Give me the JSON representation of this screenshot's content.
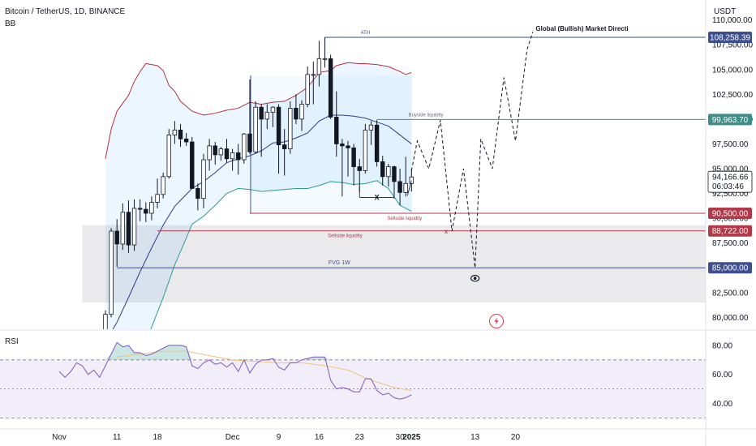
{
  "header": {
    "title": "Bitcoin / TetherUS, 1D, BINANCE",
    "indicator": "BB",
    "currency": "USDT"
  },
  "chart_data": {
    "type": "candlestick",
    "price_axis": {
      "ticks": [
        80000,
        82500,
        85000,
        87500,
        90000,
        92500,
        95000,
        97500,
        100000,
        102500,
        105000,
        107500,
        110000
      ],
      "tick_labels": [
        "80,000.00",
        "82,500.00",
        "85,000.00",
        "87,500.00",
        "90,000.00",
        "92,500.00",
        "95,000.00",
        "97,500.00",
        "100,000.00",
        "102,500.00",
        "105,000.00",
        "107,500.00",
        "110,000.00"
      ],
      "range": [
        78800,
        111200
      ]
    },
    "time_axis": {
      "labels": [
        {
          "day": 0,
          "label": "Nov"
        },
        {
          "day": 10,
          "label": "11"
        },
        {
          "day": 17,
          "label": "18"
        },
        {
          "day": 30,
          "label": "Dec"
        },
        {
          "day": 38,
          "label": "9"
        },
        {
          "day": 45,
          "label": "16"
        },
        {
          "day": 52,
          "label": "23"
        },
        {
          "day": 59,
          "label": "30"
        },
        {
          "day": 61,
          "label": "2025"
        },
        {
          "day": 72,
          "label": "13"
        },
        {
          "day": 79,
          "label": "20"
        }
      ]
    },
    "candles": [
      {
        "d": 8,
        "o": 76000,
        "h": 80700,
        "l": 75900,
        "c": 80300
      },
      {
        "d": 9,
        "o": 80300,
        "h": 89000,
        "l": 80000,
        "c": 88700
      },
      {
        "d": 10,
        "o": 88700,
        "h": 89900,
        "l": 85100,
        "c": 87400
      },
      {
        "d": 11,
        "o": 87400,
        "h": 91500,
        "l": 86800,
        "c": 90600
      },
      {
        "d": 12,
        "o": 90600,
        "h": 91800,
        "l": 86500,
        "c": 87300
      },
      {
        "d": 13,
        "o": 87300,
        "h": 91900,
        "l": 86700,
        "c": 91000
      },
      {
        "d": 14,
        "o": 91000,
        "h": 91900,
        "l": 89700,
        "c": 90900
      },
      {
        "d": 15,
        "o": 90900,
        "h": 91600,
        "l": 89600,
        "c": 90500
      },
      {
        "d": 16,
        "o": 90500,
        "h": 92200,
        "l": 89800,
        "c": 91600
      },
      {
        "d": 17,
        "o": 91600,
        "h": 94000,
        "l": 91000,
        "c": 92400
      },
      {
        "d": 18,
        "o": 92400,
        "h": 94600,
        "l": 92000,
        "c": 94200
      },
      {
        "d": 19,
        "o": 94200,
        "h": 99000,
        "l": 94000,
        "c": 98400
      },
      {
        "d": 20,
        "o": 98400,
        "h": 99800,
        "l": 97500,
        "c": 98900
      },
      {
        "d": 21,
        "o": 98900,
        "h": 99500,
        "l": 97200,
        "c": 98000
      },
      {
        "d": 22,
        "o": 98000,
        "h": 98600,
        "l": 97300,
        "c": 97700
      },
      {
        "d": 23,
        "o": 97700,
        "h": 98200,
        "l": 93200,
        "c": 93000
      },
      {
        "d": 24,
        "o": 93000,
        "h": 93500,
        "l": 90800,
        "c": 92000
      },
      {
        "d": 25,
        "o": 92000,
        "h": 96500,
        "l": 91000,
        "c": 95900
      },
      {
        "d": 26,
        "o": 95900,
        "h": 98000,
        "l": 94800,
        "c": 97300
      },
      {
        "d": 27,
        "o": 97300,
        "h": 97700,
        "l": 95400,
        "c": 96400
      },
      {
        "d": 28,
        "o": 96400,
        "h": 97200,
        "l": 95800,
        "c": 97000
      },
      {
        "d": 29,
        "o": 97000,
        "h": 98000,
        "l": 95600,
        "c": 96000
      },
      {
        "d": 30,
        "o": 96000,
        "h": 97000,
        "l": 94800,
        "c": 96600
      },
      {
        "d": 31,
        "o": 96600,
        "h": 97500,
        "l": 94400,
        "c": 95900
      },
      {
        "d": 32,
        "o": 95900,
        "h": 98600,
        "l": 95500,
        "c": 98500
      },
      {
        "d": 33,
        "o": 98500,
        "h": 104000,
        "l": 96500,
        "c": 96700
      },
      {
        "d": 34,
        "o": 96700,
        "h": 101800,
        "l": 96500,
        "c": 101200
      },
      {
        "d": 35,
        "o": 101200,
        "h": 101500,
        "l": 96200,
        "c": 100000
      },
      {
        "d": 36,
        "o": 100000,
        "h": 101500,
        "l": 99000,
        "c": 100700
      },
      {
        "d": 37,
        "o": 100700,
        "h": 101300,
        "l": 99200,
        "c": 101200
      },
      {
        "d": 38,
        "o": 101200,
        "h": 101500,
        "l": 94500,
        "c": 97400
      },
      {
        "d": 39,
        "o": 97400,
        "h": 99000,
        "l": 94300,
        "c": 97000
      },
      {
        "d": 40,
        "o": 97000,
        "h": 101800,
        "l": 96500,
        "c": 101100
      },
      {
        "d": 41,
        "o": 101100,
        "h": 102500,
        "l": 99500,
        "c": 100000
      },
      {
        "d": 42,
        "o": 100000,
        "h": 101900,
        "l": 98800,
        "c": 101500
      },
      {
        "d": 43,
        "o": 101500,
        "h": 105300,
        "l": 101200,
        "c": 104500
      },
      {
        "d": 44,
        "o": 104500,
        "h": 105800,
        "l": 101500,
        "c": 104500
      },
      {
        "d": 45,
        "o": 104500,
        "h": 107900,
        "l": 103300,
        "c": 106100
      },
      {
        "d": 46,
        "o": 106100,
        "h": 108258,
        "l": 105200,
        "c": 106100
      },
      {
        "d": 47,
        "o": 106100,
        "h": 106500,
        "l": 100000,
        "c": 100200
      },
      {
        "d": 48,
        "o": 100200,
        "h": 102800,
        "l": 96200,
        "c": 97500
      },
      {
        "d": 49,
        "o": 97500,
        "h": 98000,
        "l": 92200,
        "c": 97300
      },
      {
        "d": 50,
        "o": 97300,
        "h": 97800,
        "l": 94200,
        "c": 97100
      },
      {
        "d": 51,
        "o": 97100,
        "h": 97500,
        "l": 93300,
        "c": 95200
      },
      {
        "d": 52,
        "o": 95200,
        "h": 96000,
        "l": 92600,
        "c": 94800
      },
      {
        "d": 53,
        "o": 94800,
        "h": 99500,
        "l": 94500,
        "c": 98900
      },
      {
        "d": 54,
        "o": 98900,
        "h": 99800,
        "l": 97400,
        "c": 99400
      },
      {
        "d": 55,
        "o": 99400,
        "h": 99900,
        "l": 95200,
        "c": 95700
      },
      {
        "d": 56,
        "o": 95700,
        "h": 96300,
        "l": 93300,
        "c": 94200
      },
      {
        "d": 57,
        "o": 94200,
        "h": 95500,
        "l": 93200,
        "c": 95200
      },
      {
        "d": 58,
        "o": 95200,
        "h": 95300,
        "l": 92000,
        "c": 93700
      },
      {
        "d": 59,
        "o": 93700,
        "h": 95000,
        "l": 91300,
        "c": 92600
      },
      {
        "d": 60,
        "o": 92600,
        "h": 96200,
        "l": 92200,
        "c": 93500
      },
      {
        "d": 61,
        "o": 93500,
        "h": 95000,
        "l": 92700,
        "c": 94167
      }
    ],
    "bollinger": {
      "upper": [
        [
          8,
          96000
        ],
        [
          9,
          99000
        ],
        [
          10,
          100800
        ],
        [
          12,
          102400
        ],
        [
          13,
          103800
        ],
        [
          14,
          104800
        ],
        [
          15,
          105600
        ],
        [
          17,
          105400
        ],
        [
          18,
          104900
        ],
        [
          19,
          103400
        ],
        [
          20,
          102800
        ],
        [
          21,
          101800
        ],
        [
          22,
          101300
        ],
        [
          23,
          100800
        ],
        [
          25,
          100400
        ],
        [
          27,
          100600
        ],
        [
          29,
          100900
        ],
        [
          31,
          101100
        ],
        [
          33,
          101700
        ],
        [
          35,
          101500
        ],
        [
          37,
          101700
        ],
        [
          39,
          101800
        ],
        [
          41,
          102400
        ],
        [
          43,
          103200
        ],
        [
          45,
          104700
        ],
        [
          47,
          104900
        ],
        [
          48,
          105400
        ],
        [
          50,
          105700
        ],
        [
          52,
          105600
        ],
        [
          53,
          105600
        ],
        [
          55,
          105500
        ],
        [
          57,
          105300
        ],
        [
          59,
          104800
        ],
        [
          60,
          104500
        ],
        [
          61,
          104700
        ]
      ],
      "middle": [
        [
          8,
          77500
        ],
        [
          10,
          79500
        ],
        [
          12,
          82000
        ],
        [
          14,
          84600
        ],
        [
          16,
          87000
        ],
        [
          18,
          89300
        ],
        [
          20,
          91200
        ],
        [
          22,
          92400
        ],
        [
          23,
          93000
        ],
        [
          25,
          93700
        ],
        [
          27,
          94600
        ],
        [
          29,
          95600
        ],
        [
          31,
          96000
        ],
        [
          33,
          96300
        ],
        [
          35,
          96800
        ],
        [
          37,
          97600
        ],
        [
          39,
          97700
        ],
        [
          41,
          98100
        ],
        [
          43,
          98600
        ],
        [
          45,
          99800
        ],
        [
          47,
          100400
        ],
        [
          49,
          100400
        ],
        [
          51,
          100300
        ],
        [
          53,
          100100
        ],
        [
          55,
          99700
        ],
        [
          57,
          99300
        ],
        [
          59,
          98400
        ],
        [
          61,
          97500
        ]
      ],
      "lower": [
        [
          8,
          68000
        ],
        [
          10,
          71000
        ],
        [
          12,
          74000
        ],
        [
          14,
          76500
        ],
        [
          16,
          79000
        ],
        [
          18,
          82000
        ],
        [
          20,
          85300
        ],
        [
          22,
          88000
        ],
        [
          23,
          89400
        ],
        [
          25,
          90200
        ],
        [
          27,
          91300
        ],
        [
          29,
          92500
        ],
        [
          31,
          93000
        ],
        [
          33,
          92900
        ],
        [
          35,
          92700
        ],
        [
          37,
          92800
        ],
        [
          39,
          92900
        ],
        [
          41,
          93000
        ],
        [
          43,
          93000
        ],
        [
          45,
          93300
        ],
        [
          47,
          93700
        ],
        [
          49,
          93600
        ],
        [
          51,
          93400
        ],
        [
          53,
          93500
        ],
        [
          55,
          93800
        ],
        [
          57,
          93000
        ],
        [
          59,
          91300
        ],
        [
          61,
          90700
        ]
      ]
    },
    "levels": [
      {
        "name": "ATH",
        "value": 108258.39,
        "label": "108,258.39",
        "color": "#3d4e91",
        "note": "ATH",
        "note2": "Global (Bullish) Market Directi",
        "start": 46
      },
      {
        "name": "Buyside liquidity",
        "value": 99963.7,
        "label": "99,963.70",
        "color": "#3c8f89",
        "note": "Buyside liquidity",
        "start": 55
      },
      {
        "name": "Sellside liquidity 1",
        "value": 90500,
        "label": "90,500.00",
        "color": "#b23a48",
        "note": "Sellside liquidity",
        "start": 33
      },
      {
        "name": "Sellside liquidity 2",
        "value": 88722,
        "label": "88,722.00",
        "color": "#b23a48",
        "note": "Sellside liquidity",
        "start": 17
      },
      {
        "name": "FVG 1W",
        "value": 85000,
        "label": "85,000.00",
        "color": "#3d4e91",
        "note": "FVG 1W",
        "start": 10
      }
    ],
    "current_price": {
      "label": "94,166.66",
      "countdown": "06:03:46"
    },
    "fvg_zone": {
      "from": 81500,
      "to": 89300,
      "start_day": 4
    },
    "projection_path": [
      [
        61,
        94800
      ],
      [
        62,
        97800
      ],
      [
        64,
        95000
      ],
      [
        66,
        99900
      ],
      [
        68,
        88700
      ],
      [
        70,
        95000
      ],
      [
        72,
        85000
      ],
      [
        73,
        98000
      ],
      [
        75,
        95000
      ],
      [
        77,
        104200
      ],
      [
        79,
        97800
      ],
      [
        81,
        107000
      ],
      [
        82,
        108800
      ]
    ],
    "annotations": [
      {
        "text": "X",
        "day": 55,
        "value": 92100
      },
      {
        "text": "X",
        "day": 67,
        "value": 88700
      }
    ],
    "rsi": {
      "label": "RSI",
      "ticks": [
        40,
        60,
        80
      ],
      "tick_labels": [
        "40.00",
        "60.00",
        "80.00"
      ],
      "band": [
        30,
        70
      ],
      "midline": 50,
      "range": [
        23,
        90
      ],
      "values": [
        [
          0,
          62
        ],
        [
          1,
          58
        ],
        [
          2,
          62
        ],
        [
          3,
          68
        ],
        [
          4,
          66
        ],
        [
          5,
          60
        ],
        [
          6,
          63
        ],
        [
          7,
          58
        ],
        [
          8,
          66
        ],
        [
          9,
          74
        ],
        [
          10,
          82
        ],
        [
          11,
          79
        ],
        [
          12,
          80
        ],
        [
          13,
          75
        ],
        [
          14,
          75
        ],
        [
          15,
          73
        ],
        [
          16,
          74
        ],
        [
          17,
          76
        ],
        [
          18,
          78
        ],
        [
          19,
          80
        ],
        [
          20,
          80
        ],
        [
          21,
          80
        ],
        [
          22,
          79
        ],
        [
          23,
          66
        ],
        [
          24,
          64
        ],
        [
          25,
          68
        ],
        [
          26,
          70
        ],
        [
          27,
          67
        ],
        [
          28,
          68
        ],
        [
          29,
          65
        ],
        [
          30,
          68
        ],
        [
          31,
          62
        ],
        [
          32,
          70
        ],
        [
          33,
          61
        ],
        [
          34,
          67
        ],
        [
          35,
          70
        ],
        [
          36,
          70
        ],
        [
          37,
          71
        ],
        [
          38,
          65
        ],
        [
          39,
          63
        ],
        [
          40,
          68
        ],
        [
          41,
          68
        ],
        [
          42,
          70
        ],
        [
          43,
          71
        ],
        [
          44,
          72
        ],
        [
          45,
          72
        ],
        [
          46,
          72
        ],
        [
          47,
          56
        ],
        [
          48,
          50
        ],
        [
          49,
          51
        ],
        [
          50,
          50
        ],
        [
          51,
          48
        ],
        [
          52,
          48
        ],
        [
          53,
          57
        ],
        [
          54,
          57
        ],
        [
          55,
          49
        ],
        [
          56,
          46
        ],
        [
          57,
          47
        ],
        [
          58,
          44
        ],
        [
          59,
          43
        ],
        [
          60,
          44
        ],
        [
          61,
          46
        ]
      ],
      "ma": [
        [
          10,
          72
        ],
        [
          14,
          74
        ],
        [
          18,
          76
        ],
        [
          22,
          76
        ],
        [
          26,
          73
        ],
        [
          30,
          70
        ],
        [
          34,
          69
        ],
        [
          38,
          68
        ],
        [
          42,
          68
        ],
        [
          46,
          66
        ],
        [
          50,
          63
        ],
        [
          54,
          56
        ],
        [
          58,
          51
        ],
        [
          61,
          49
        ]
      ]
    }
  }
}
